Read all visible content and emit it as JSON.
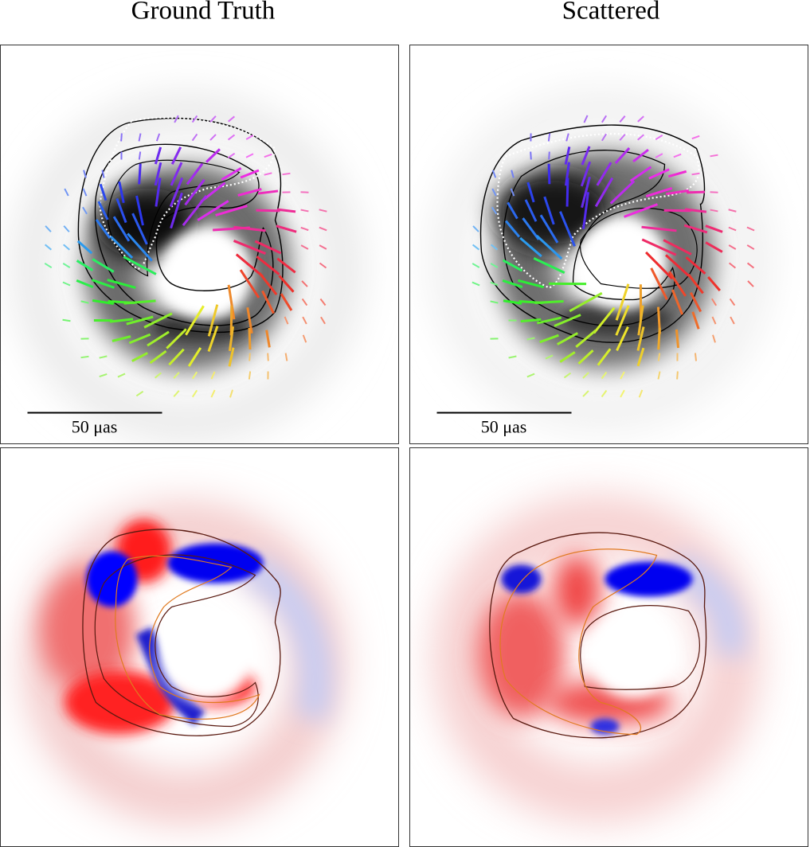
{
  "panels": [
    {
      "title": "Ground Truth",
      "scale_bar_label": "50 μas"
    },
    {
      "title": "Scattered",
      "scale_bar_label": "50 μas"
    }
  ]
}
